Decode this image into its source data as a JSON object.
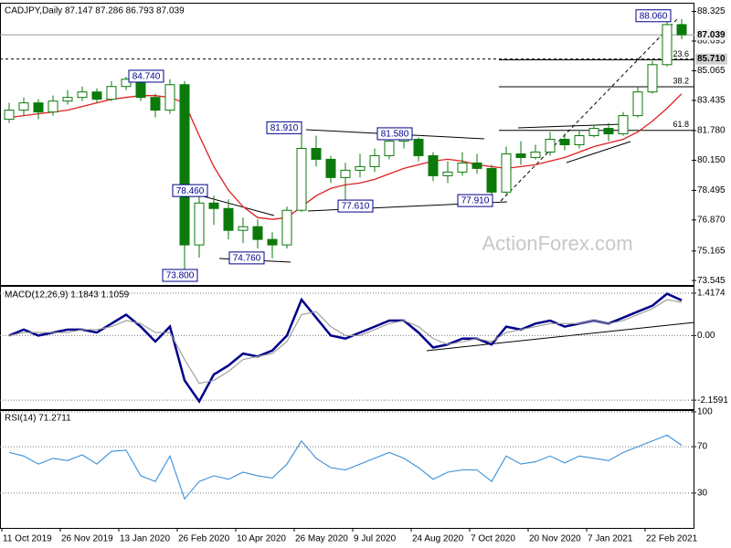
{
  "chart_data": [
    {
      "type": "candlestick",
      "title": "CADJPY,Daily  87.147 87.286 86.793 87.039",
      "color": "#0b7a0b",
      "open": [
        82.4,
        82.9,
        83.3,
        82.8,
        83.4,
        83.6,
        83.9,
        83.5,
        84.2,
        84.6,
        83.6,
        82.9,
        84.3,
        75.5,
        77.8,
        77.5,
        76.3,
        76.5,
        75.8,
        75.5,
        77.4,
        80.8,
        80.2,
        79.2,
        79.6,
        79.8,
        80.4,
        81.2,
        81.3,
        80.4,
        79.3,
        79.5,
        80.0,
        79.7,
        78.4,
        80.5,
        80.3,
        80.6,
        81.3,
        81.0,
        81.5,
        81.9,
        81.6,
        82.6,
        83.9,
        85.4,
        87.6
      ],
      "high": [
        83.3,
        83.6,
        83.5,
        83.7,
        84.0,
        84.2,
        84.1,
        84.5,
        84.74,
        84.7,
        83.8,
        84.6,
        84.5,
        78.46,
        78.2,
        78.0,
        77.0,
        76.9,
        76.2,
        77.6,
        81.91,
        81.5,
        80.4,
        80.0,
        80.5,
        80.8,
        81.58,
        81.7,
        81.4,
        80.6,
        80.1,
        80.6,
        80.5,
        79.9,
        80.9,
        81.2,
        81.0,
        81.7,
        81.6,
        81.8,
        82.1,
        82.2,
        82.8,
        84.2,
        85.6,
        88.06,
        87.9
      ],
      "low": [
        82.2,
        82.6,
        82.4,
        82.6,
        83.2,
        83.4,
        83.3,
        83.4,
        84.0,
        83.4,
        82.5,
        82.7,
        73.8,
        74.8,
        76.6,
        75.8,
        75.6,
        75.3,
        74.76,
        75.3,
        77.3,
        79.8,
        78.9,
        77.61,
        79.2,
        79.5,
        80.2,
        80.8,
        80.1,
        79.0,
        78.9,
        79.3,
        79.4,
        77.91,
        78.3,
        79.9,
        80.2,
        80.4,
        80.7,
        80.8,
        81.4,
        81.2,
        81.5,
        82.5,
        83.8,
        85.3,
        86.8
      ],
      "close": [
        82.9,
        83.3,
        82.8,
        83.4,
        83.6,
        83.9,
        83.5,
        84.2,
        84.6,
        83.6,
        82.9,
        84.3,
        75.5,
        77.8,
        77.5,
        76.3,
        76.5,
        75.8,
        75.5,
        77.4,
        80.8,
        80.2,
        79.2,
        79.6,
        79.8,
        80.4,
        81.2,
        81.3,
        80.4,
        79.3,
        79.5,
        80.0,
        79.7,
        78.4,
        80.5,
        80.3,
        80.6,
        81.3,
        81.0,
        81.5,
        81.9,
        81.6,
        82.6,
        83.9,
        85.4,
        87.6,
        87.039
      ],
      "series": [
        {
          "color": "#e02020",
          "values": [
            82.5,
            82.6,
            82.7,
            82.8,
            82.9,
            83.1,
            83.3,
            83.5,
            83.6,
            83.7,
            83.7,
            83.6,
            83.3,
            81.5,
            79.8,
            78.5,
            77.6,
            77.0,
            76.9,
            77.0,
            77.6,
            78.2,
            78.6,
            78.8,
            78.9,
            79.1,
            79.4,
            79.7,
            79.9,
            80.1,
            80.2,
            80.1,
            79.9,
            79.8,
            79.7,
            79.8,
            79.9,
            80.1,
            80.3,
            80.6,
            80.9,
            81.1,
            81.3,
            81.7,
            82.3,
            83.0,
            83.8
          ]
        }
      ],
      "ylim": [
        73.3,
        88.7
      ],
      "yticks": [
        88.325,
        86.695,
        85.065,
        83.435,
        {
          "value": 81.78,
          "label": "81.780"
        },
        {
          "value": 80.15,
          "label": "80.150"
        },
        78.495,
        {
          "value": 76.87,
          "label": "76.870"
        },
        75.165,
        73.545
      ],
      "grid": false,
      "price_lines": [
        {
          "value": 87.039,
          "label": "87.039",
          "style": "solid"
        },
        {
          "value": 85.71,
          "label": "85.710",
          "style": "dashed"
        }
      ],
      "annotations": [
        {
          "value": 84.74,
          "label": "84.740"
        },
        {
          "value": 81.91,
          "label": "81.910"
        },
        {
          "value": 81.58,
          "label": "81.580"
        },
        {
          "value": 78.46,
          "label": "78.460"
        },
        {
          "value": 77.61,
          "label": "77.610"
        },
        {
          "value": 77.91,
          "label": "77.910"
        },
        {
          "value": 74.76,
          "label": "74.760"
        },
        {
          "value": 73.8,
          "label": "73.800"
        },
        {
          "value": 88.06,
          "label": "88.060"
        }
      ],
      "fib_levels": [
        23.6,
        38.2,
        61.8
      ],
      "watermark": "ActionForex.com"
    },
    {
      "type": "line",
      "title": "MACD(12,26,9) 1.1843 1.1059",
      "series": [
        {
          "color": "#00008b",
          "values": [
            0.0,
            0.2,
            0.0,
            0.1,
            0.2,
            0.2,
            0.1,
            0.4,
            0.7,
            0.3,
            -0.2,
            0.3,
            -1.5,
            -2.2,
            -1.3,
            -1.0,
            -0.6,
            -0.7,
            -0.5,
            0.0,
            1.2,
            0.6,
            0.0,
            -0.1,
            0.1,
            0.3,
            0.5,
            0.5,
            0.1,
            -0.4,
            -0.3,
            -0.1,
            -0.1,
            -0.3,
            0.3,
            0.2,
            0.4,
            0.5,
            0.3,
            0.4,
            0.5,
            0.4,
            0.6,
            0.8,
            1.0,
            1.4,
            1.18
          ]
        },
        {
          "color": "#999999",
          "values": [
            0.0,
            0.1,
            0.1,
            0.1,
            0.1,
            0.2,
            0.2,
            0.3,
            0.5,
            0.4,
            0.1,
            0.1,
            -0.8,
            -1.6,
            -1.5,
            -1.2,
            -0.8,
            -0.7,
            -0.6,
            -0.2,
            0.7,
            0.8,
            0.3,
            0.0,
            0.0,
            0.2,
            0.4,
            0.5,
            0.3,
            -0.1,
            -0.3,
            -0.2,
            -0.1,
            -0.2,
            0.1,
            0.2,
            0.3,
            0.4,
            0.4,
            0.4,
            0.5,
            0.4,
            0.5,
            0.7,
            0.9,
            1.2,
            1.11
          ]
        }
      ],
      "ylim": [
        -2.43,
        1.57
      ],
      "yticks": [
        1.4174,
        {
          "value": 0,
          "label": "0.00"
        },
        -2.1591
      ],
      "grid": true
    },
    {
      "type": "line",
      "title": "RSI(14) 71.2711",
      "series": [
        {
          "color": "#3a8fd8",
          "values": [
            65,
            62,
            55,
            60,
            58,
            63,
            55,
            66,
            67,
            45,
            40,
            62,
            25,
            40,
            45,
            42,
            48,
            45,
            43,
            55,
            75,
            60,
            52,
            50,
            55,
            60,
            65,
            60,
            52,
            42,
            48,
            50,
            50,
            40,
            62,
            55,
            57,
            62,
            56,
            62,
            60,
            58,
            65,
            70,
            75,
            80,
            71.27
          ]
        }
      ],
      "ylim": [
        0,
        100
      ],
      "yticks": [
        100,
        70,
        30
      ],
      "grid": true,
      "categories": [
        "11 Oct 2019",
        null,
        null,
        null,
        "26 Nov 2019",
        null,
        null,
        null,
        "13 Jan 2020",
        null,
        null,
        null,
        "26 Feb 2020",
        null,
        null,
        null,
        "10 Apr 2020",
        null,
        null,
        null,
        "26 May 2020",
        null,
        null,
        null,
        "9 Jul 2020",
        null,
        null,
        null,
        "24 Aug 2020",
        null,
        null,
        null,
        "7 Oct 2020",
        null,
        null,
        null,
        "20 Nov 2020",
        null,
        null,
        null,
        "7 Jan 2021",
        null,
        null,
        null,
        "22 Feb 2021",
        null,
        null
      ]
    }
  ]
}
